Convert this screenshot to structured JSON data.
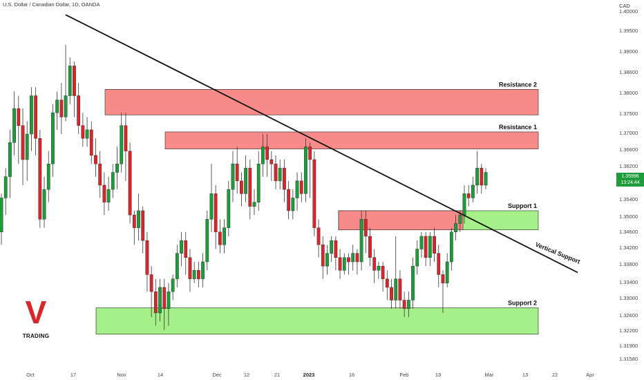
{
  "header": {
    "symbol_text": "U.S. Dollar / Canadian Dollar, 1D, OANDA",
    "currency": "CAD"
  },
  "price_tag": {
    "price": "1.35996",
    "countdown": "13:24:44",
    "color": "#1e9b3a"
  },
  "logo": {
    "letter": "V",
    "text": "TRADING",
    "color": "#d8262a"
  },
  "colors": {
    "up": "#1e9b3a",
    "down": "#d8262a",
    "resistance": "#f88a8a",
    "support": "#a6f08a"
  },
  "chart_data": {
    "type": "candlestick",
    "ylim": [
      1.3155,
      1.4005
    ],
    "y_ticks": [
      "1.40000",
      "1.39500",
      "1.39000",
      "1.38600",
      "1.38000",
      "1.37500",
      "1.37000",
      "1.36600",
      "1.36200",
      "1.35800",
      "1.35400",
      "1.35000",
      "1.34600",
      "1.34200",
      "1.33800",
      "1.33400",
      "1.33000",
      "1.32600",
      "1.32200",
      "1.31900",
      "1.31580"
    ],
    "x_ticks": [
      {
        "label": "Oct",
        "bold": false
      },
      {
        "label": "17",
        "bold": false
      },
      {
        "label": "Nov",
        "bold": false
      },
      {
        "label": "14",
        "bold": false
      },
      {
        "label": "Dec",
        "bold": false
      },
      {
        "label": "12",
        "bold": false
      },
      {
        "label": "21",
        "bold": false
      },
      {
        "label": "2023",
        "bold": true
      },
      {
        "label": "16",
        "bold": false
      },
      {
        "label": "Feb",
        "bold": false
      },
      {
        "label": "13",
        "bold": false
      },
      {
        "label": "Mar",
        "bold": false
      },
      {
        "label": "13",
        "bold": false
      },
      {
        "label": "22",
        "bold": false
      },
      {
        "label": "Apr",
        "bold": false
      }
    ],
    "zones": [
      {
        "label": "Resistance 2",
        "type": "resistance",
        "from": 1.3745,
        "to": 1.3805
      },
      {
        "label": "Resistance 1",
        "type": "resistance",
        "from": 1.3665,
        "to": 1.3705
      },
      {
        "label": "Support 1",
        "type": "support",
        "from": 1.3475,
        "to": 1.352
      },
      {
        "label": "Support 2",
        "type": "support",
        "from": 1.323,
        "to": 1.3292
      }
    ],
    "resistance_mixed_zone": {
      "from": 1.3475,
      "to": 1.352
    },
    "trendline": {
      "label": "Vertical Support",
      "from": 1.398,
      "to": 1.3375
    },
    "candles": [
      [
        1.347,
        1.355,
        1.344,
        1.356
      ],
      [
        1.355,
        1.36,
        1.351,
        1.362
      ],
      [
        1.36,
        1.368,
        1.355,
        1.371
      ],
      [
        1.368,
        1.376,
        1.365,
        1.38
      ],
      [
        1.376,
        1.372,
        1.363,
        1.379
      ],
      [
        1.372,
        1.364,
        1.358,
        1.376
      ],
      [
        1.364,
        1.37,
        1.359,
        1.373
      ],
      [
        1.37,
        1.379,
        1.366,
        1.381
      ],
      [
        1.379,
        1.369,
        1.365,
        1.381
      ],
      [
        1.369,
        1.35,
        1.348,
        1.371
      ],
      [
        1.35,
        1.357,
        1.348,
        1.36
      ],
      [
        1.357,
        1.363,
        1.354,
        1.366
      ],
      [
        1.363,
        1.375,
        1.36,
        1.377
      ],
      [
        1.375,
        1.378,
        1.371,
        1.38
      ],
      [
        1.378,
        1.374,
        1.37,
        1.382
      ],
      [
        1.374,
        1.379,
        1.373,
        1.391
      ],
      [
        1.379,
        1.386,
        1.377,
        1.388
      ],
      [
        1.386,
        1.379,
        1.374,
        1.387
      ],
      [
        1.379,
        1.372,
        1.37,
        1.382
      ],
      [
        1.372,
        1.369,
        1.367,
        1.375
      ],
      [
        1.369,
        1.371,
        1.367,
        1.374
      ],
      [
        1.371,
        1.365,
        1.363,
        1.373
      ],
      [
        1.365,
        1.363,
        1.36,
        1.369
      ],
      [
        1.363,
        1.358,
        1.355,
        1.366
      ],
      [
        1.358,
        1.354,
        1.351,
        1.361
      ],
      [
        1.354,
        1.357,
        1.352,
        1.36
      ],
      [
        1.357,
        1.361,
        1.355,
        1.363
      ],
      [
        1.361,
        1.363,
        1.357,
        1.367
      ],
      [
        1.363,
        1.372,
        1.361,
        1.375
      ],
      [
        1.372,
        1.366,
        1.359,
        1.375
      ],
      [
        1.366,
        1.351,
        1.349,
        1.368
      ],
      [
        1.351,
        1.348,
        1.344,
        1.352
      ],
      [
        1.348,
        1.352,
        1.345,
        1.356
      ],
      [
        1.352,
        1.345,
        1.342,
        1.353
      ],
      [
        1.345,
        1.337,
        1.333,
        1.347
      ],
      [
        1.337,
        1.333,
        1.327,
        1.339
      ],
      [
        1.333,
        1.328,
        1.325,
        1.336
      ],
      [
        1.328,
        1.334,
        1.326,
        1.336
      ],
      [
        1.334,
        1.329,
        1.324,
        1.336
      ],
      [
        1.329,
        1.333,
        1.325,
        1.335
      ],
      [
        1.333,
        1.336,
        1.331,
        1.337
      ],
      [
        1.336,
        1.342,
        1.334,
        1.344
      ],
      [
        1.342,
        1.345,
        1.339,
        1.347
      ],
      [
        1.345,
        1.341,
        1.337,
        1.347
      ],
      [
        1.341,
        1.336,
        1.333,
        1.343
      ],
      [
        1.336,
        1.338,
        1.335,
        1.34
      ],
      [
        1.338,
        1.336,
        1.334,
        1.34
      ],
      [
        1.336,
        1.34,
        1.334,
        1.342
      ],
      [
        1.34,
        1.35,
        1.338,
        1.352
      ],
      [
        1.35,
        1.356,
        1.347,
        1.363
      ],
      [
        1.356,
        1.347,
        1.343,
        1.358
      ],
      [
        1.347,
        1.344,
        1.342,
        1.35
      ],
      [
        1.344,
        1.348,
        1.342,
        1.35
      ],
      [
        1.348,
        1.357,
        1.346,
        1.359
      ],
      [
        1.357,
        1.363,
        1.354,
        1.366
      ],
      [
        1.363,
        1.359,
        1.356,
        1.367
      ],
      [
        1.359,
        1.356,
        1.353,
        1.361
      ],
      [
        1.356,
        1.362,
        1.354,
        1.365
      ],
      [
        1.362,
        1.353,
        1.35,
        1.364
      ],
      [
        1.353,
        1.354,
        1.351,
        1.357
      ],
      [
        1.354,
        1.363,
        1.352,
        1.366
      ],
      [
        1.363,
        1.367,
        1.36,
        1.37
      ],
      [
        1.367,
        1.364,
        1.36,
        1.37
      ],
      [
        1.364,
        1.363,
        1.359,
        1.366
      ],
      [
        1.363,
        1.359,
        1.357,
        1.365
      ],
      [
        1.359,
        1.362,
        1.357,
        1.364
      ],
      [
        1.362,
        1.357,
        1.354,
        1.364
      ],
      [
        1.357,
        1.352,
        1.35,
        1.359
      ],
      [
        1.352,
        1.355,
        1.35,
        1.357
      ],
      [
        1.355,
        1.359,
        1.352,
        1.361
      ],
      [
        1.359,
        1.356,
        1.354,
        1.361
      ],
      [
        1.356,
        1.367,
        1.354,
        1.369
      ],
      [
        1.367,
        1.364,
        1.355,
        1.368
      ],
      [
        1.364,
        1.348,
        1.346,
        1.366
      ],
      [
        1.348,
        1.344,
        1.341,
        1.35
      ],
      [
        1.344,
        1.339,
        1.336,
        1.346
      ],
      [
        1.339,
        1.342,
        1.337,
        1.344
      ],
      [
        1.342,
        1.345,
        1.34,
        1.346
      ],
      [
        1.345,
        1.341,
        1.338,
        1.346
      ],
      [
        1.341,
        1.338,
        1.336,
        1.343
      ],
      [
        1.338,
        1.341,
        1.337,
        1.342
      ],
      [
        1.341,
        1.34,
        1.337,
        1.342
      ],
      [
        1.34,
        1.342,
        1.338,
        1.344
      ],
      [
        1.342,
        1.34,
        1.337,
        1.343
      ],
      [
        1.34,
        1.35,
        1.338,
        1.352
      ],
      [
        1.35,
        1.346,
        1.342,
        1.352
      ],
      [
        1.346,
        1.341,
        1.339,
        1.348
      ],
      [
        1.341,
        1.338,
        1.335,
        1.343
      ],
      [
        1.338,
        1.339,
        1.336,
        1.34
      ],
      [
        1.339,
        1.336,
        1.333,
        1.34
      ],
      [
        1.336,
        1.334,
        1.331,
        1.338
      ],
      [
        1.334,
        1.331,
        1.329,
        1.336
      ],
      [
        1.331,
        1.336,
        1.329,
        1.346
      ],
      [
        1.336,
        1.331,
        1.329,
        1.338
      ],
      [
        1.331,
        1.329,
        1.327,
        1.333
      ],
      [
        1.329,
        1.331,
        1.327,
        1.333
      ],
      [
        1.331,
        1.339,
        1.329,
        1.341
      ],
      [
        1.339,
        1.343,
        1.337,
        1.345
      ],
      [
        1.343,
        1.346,
        1.341,
        1.347
      ],
      [
        1.346,
        1.341,
        1.339,
        1.347
      ],
      [
        1.341,
        1.346,
        1.339,
        1.347
      ],
      [
        1.346,
        1.342,
        1.34,
        1.348
      ],
      [
        1.342,
        1.337,
        1.334,
        1.344
      ],
      [
        1.337,
        1.335,
        1.328,
        1.338
      ],
      [
        1.335,
        1.34,
        1.334,
        1.342
      ],
      [
        1.34,
        1.347,
        1.338,
        1.348
      ],
      [
        1.347,
        1.349,
        1.345,
        1.351
      ],
      [
        1.349,
        1.351,
        1.347,
        1.352
      ],
      [
        1.351,
        1.356,
        1.349,
        1.358
      ],
      [
        1.356,
        1.355,
        1.353,
        1.358
      ],
      [
        1.355,
        1.358,
        1.354,
        1.36
      ],
      [
        1.358,
        1.362,
        1.356,
        1.366
      ],
      [
        1.362,
        1.358,
        1.356,
        1.363
      ],
      [
        1.358,
        1.361,
        1.357,
        1.362
      ]
    ]
  }
}
